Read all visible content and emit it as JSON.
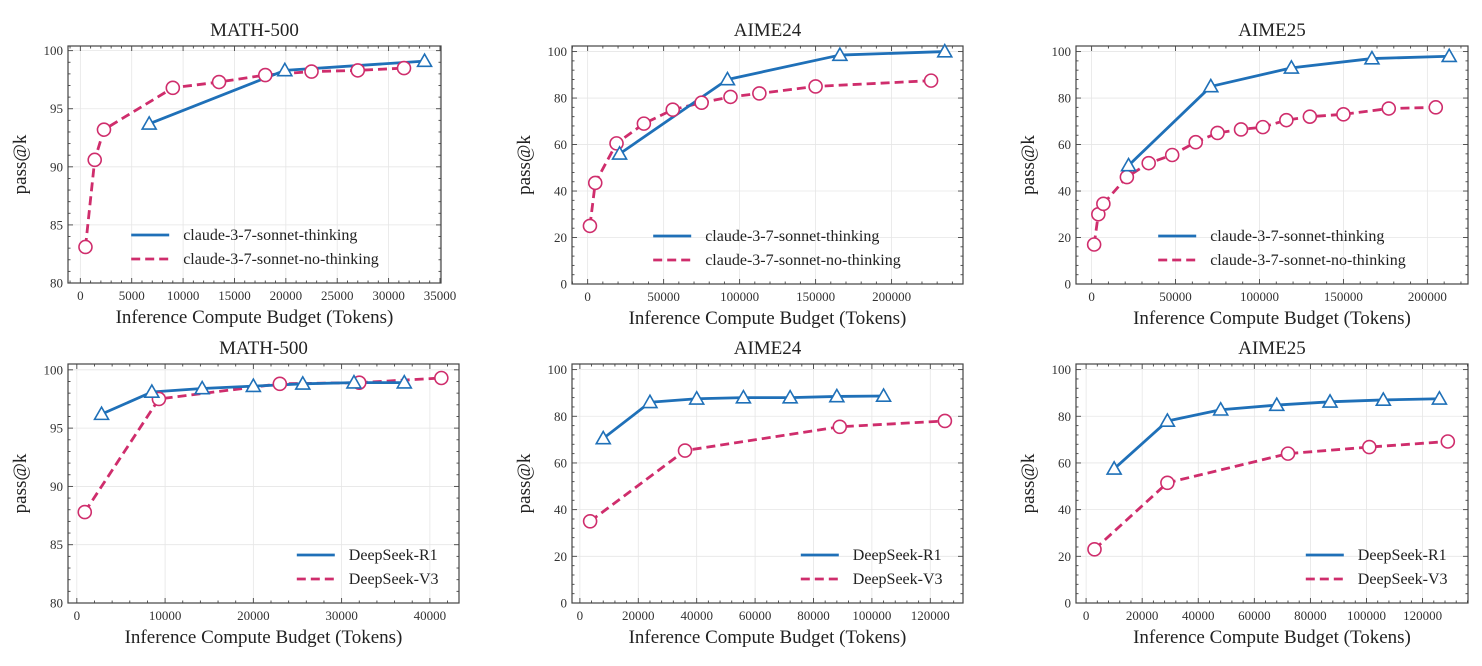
{
  "colors": {
    "series_a": "#1f70b8",
    "series_b": "#cf2d6c",
    "grid": "#e6e6e6",
    "axis": "#444444"
  },
  "chart_data": [
    {
      "type": "line",
      "title": "MATH-500",
      "xlabel": "Inference Compute Budget (Tokens)",
      "ylabel": "pass@k",
      "xlim": [
        -1200,
        35100
      ],
      "ylim": [
        80,
        100.4
      ],
      "xticks": [
        0,
        5000,
        10000,
        15000,
        20000,
        25000,
        30000,
        35000
      ],
      "yticks": [
        80,
        85,
        90,
        95,
        100
      ],
      "legend_position": "lower-right",
      "grid": true,
      "series": [
        {
          "name": "claude-3-7-sonnet-thinking",
          "style": "solid",
          "marker": "triangle",
          "x": [
            6700,
            19900,
            33500
          ],
          "y": [
            93.7,
            98.3,
            99.1
          ]
        },
        {
          "name": "claude-3-7-sonnet-no-thinking",
          "style": "dashed",
          "marker": "circle",
          "x": [
            500,
            1400,
            2300,
            9000,
            13500,
            18000,
            22500,
            27000,
            31500
          ],
          "y": [
            83.1,
            90.6,
            93.2,
            96.8,
            97.3,
            97.9,
            98.2,
            98.3,
            98.5
          ]
        }
      ]
    },
    {
      "type": "line",
      "title": "AIME24",
      "xlabel": "Inference Compute Budget (Tokens)",
      "ylabel": "pass@k",
      "xlim": [
        -10300,
        247000
      ],
      "ylim": [
        0,
        102.4
      ],
      "xticks": [
        0,
        50000,
        100000,
        150000,
        200000
      ],
      "yticks": [
        0,
        20,
        40,
        60,
        80,
        100
      ],
      "legend_position": "lower-right",
      "grid": true,
      "series": [
        {
          "name": "claude-3-7-sonnet-thinking",
          "style": "solid",
          "marker": "triangle",
          "x": [
            21000,
            92000,
            166000,
            235000
          ],
          "y": [
            56,
            88,
            98.5,
            100
          ]
        },
        {
          "name": "claude-3-7-sonnet-no-thinking",
          "style": "dashed",
          "marker": "circle",
          "x": [
            1500,
            5000,
            19000,
            37000,
            56000,
            75000,
            94000,
            113000,
            150000,
            226000
          ],
          "y": [
            25,
            43.5,
            60.5,
            69,
            75,
            78,
            80.5,
            82,
            85,
            87.5
          ]
        }
      ]
    },
    {
      "type": "line",
      "title": "AIME25",
      "xlabel": "Inference Compute Budget (Tokens)",
      "ylabel": "pass@k",
      "xlim": [
        -9300,
        224200
      ],
      "ylim": [
        0,
        102.4
      ],
      "xticks": [
        0,
        50000,
        100000,
        150000,
        200000
      ],
      "yticks": [
        0,
        20,
        40,
        60,
        80,
        100
      ],
      "legend_position": "lower-right",
      "grid": true,
      "series": [
        {
          "name": "claude-3-7-sonnet-thinking",
          "style": "solid",
          "marker": "triangle",
          "x": [
            22000,
            71000,
            119000,
            167000,
            213000
          ],
          "y": [
            51,
            85,
            93,
            97,
            98
          ]
        },
        {
          "name": "claude-3-7-sonnet-no-thinking",
          "style": "dashed",
          "marker": "circle",
          "x": [
            1500,
            4000,
            7000,
            21000,
            34000,
            48000,
            62000,
            75000,
            89000,
            102000,
            116000,
            130000,
            150000,
            177000,
            205000
          ],
          "y": [
            17,
            30,
            34.5,
            46,
            52,
            55.5,
            61,
            65,
            66.5,
            67.5,
            70.5,
            72,
            73,
            75.5,
            76
          ]
        }
      ]
    },
    {
      "type": "line",
      "title": "MATH-500",
      "xlabel": "Inference Compute Budget (Tokens)",
      "ylabel": "pass@k",
      "xlim": [
        -1000,
        43300
      ],
      "ylim": [
        80,
        100.5
      ],
      "xticks": [
        0,
        10000,
        20000,
        30000,
        40000
      ],
      "yticks": [
        80,
        85,
        90,
        95,
        100
      ],
      "legend_position": "lower-right",
      "grid": true,
      "series": [
        {
          "name": "DeepSeek-R1",
          "style": "solid",
          "marker": "triangle",
          "x": [
            2800,
            8500,
            14200,
            20000,
            25600,
            31400,
            37100
          ],
          "y": [
            96.2,
            98.1,
            98.4,
            98.6,
            98.8,
            98.9,
            98.9
          ]
        },
        {
          "name": "DeepSeek-V3",
          "style": "dashed",
          "marker": "circle",
          "x": [
            900,
            9300,
            23000,
            32000,
            41300
          ],
          "y": [
            87.8,
            97.5,
            98.8,
            98.9,
            99.3
          ]
        }
      ]
    },
    {
      "type": "line",
      "title": "AIME24",
      "xlabel": "Inference Compute Budget (Tokens)",
      "ylabel": "pass@k",
      "xlim": [
        -2700,
        131200
      ],
      "ylim": [
        0,
        102.4
      ],
      "xticks": [
        0,
        20000,
        40000,
        60000,
        80000,
        100000,
        120000
      ],
      "yticks": [
        0,
        20,
        40,
        60,
        80,
        100
      ],
      "legend_position": "lower-right",
      "grid": true,
      "series": [
        {
          "name": "DeepSeek-R1",
          "style": "solid",
          "marker": "triangle",
          "x": [
            8000,
            24000,
            40000,
            56000,
            72000,
            88000,
            104000
          ],
          "y": [
            70.5,
            86,
            87.5,
            88,
            88,
            88.5,
            88.7
          ]
        },
        {
          "name": "DeepSeek-V3",
          "style": "dashed",
          "marker": "circle",
          "x": [
            3500,
            36000,
            89000,
            125000
          ],
          "y": [
            35,
            65.3,
            75.5,
            78
          ]
        }
      ]
    },
    {
      "type": "line",
      "title": "AIME25",
      "xlabel": "Inference Compute Budget (Tokens)",
      "ylabel": "pass@k",
      "xlim": [
        -3600,
        136200
      ],
      "ylim": [
        0,
        102.4
      ],
      "xticks": [
        0,
        20000,
        40000,
        60000,
        80000,
        100000,
        120000
      ],
      "yticks": [
        0,
        20,
        40,
        60,
        80,
        100
      ],
      "legend_position": "lower-right",
      "grid": true,
      "series": [
        {
          "name": "DeepSeek-R1",
          "style": "solid",
          "marker": "triangle",
          "x": [
            10000,
            29000,
            48000,
            68000,
            87000,
            106000,
            126000
          ],
          "y": [
            57.5,
            78,
            82.8,
            84.8,
            86.2,
            87,
            87.5
          ]
        },
        {
          "name": "DeepSeek-V3",
          "style": "dashed",
          "marker": "circle",
          "x": [
            3000,
            29000,
            72000,
            101000,
            129000
          ],
          "y": [
            23,
            51.5,
            64,
            66.8,
            69.2
          ]
        }
      ]
    }
  ]
}
